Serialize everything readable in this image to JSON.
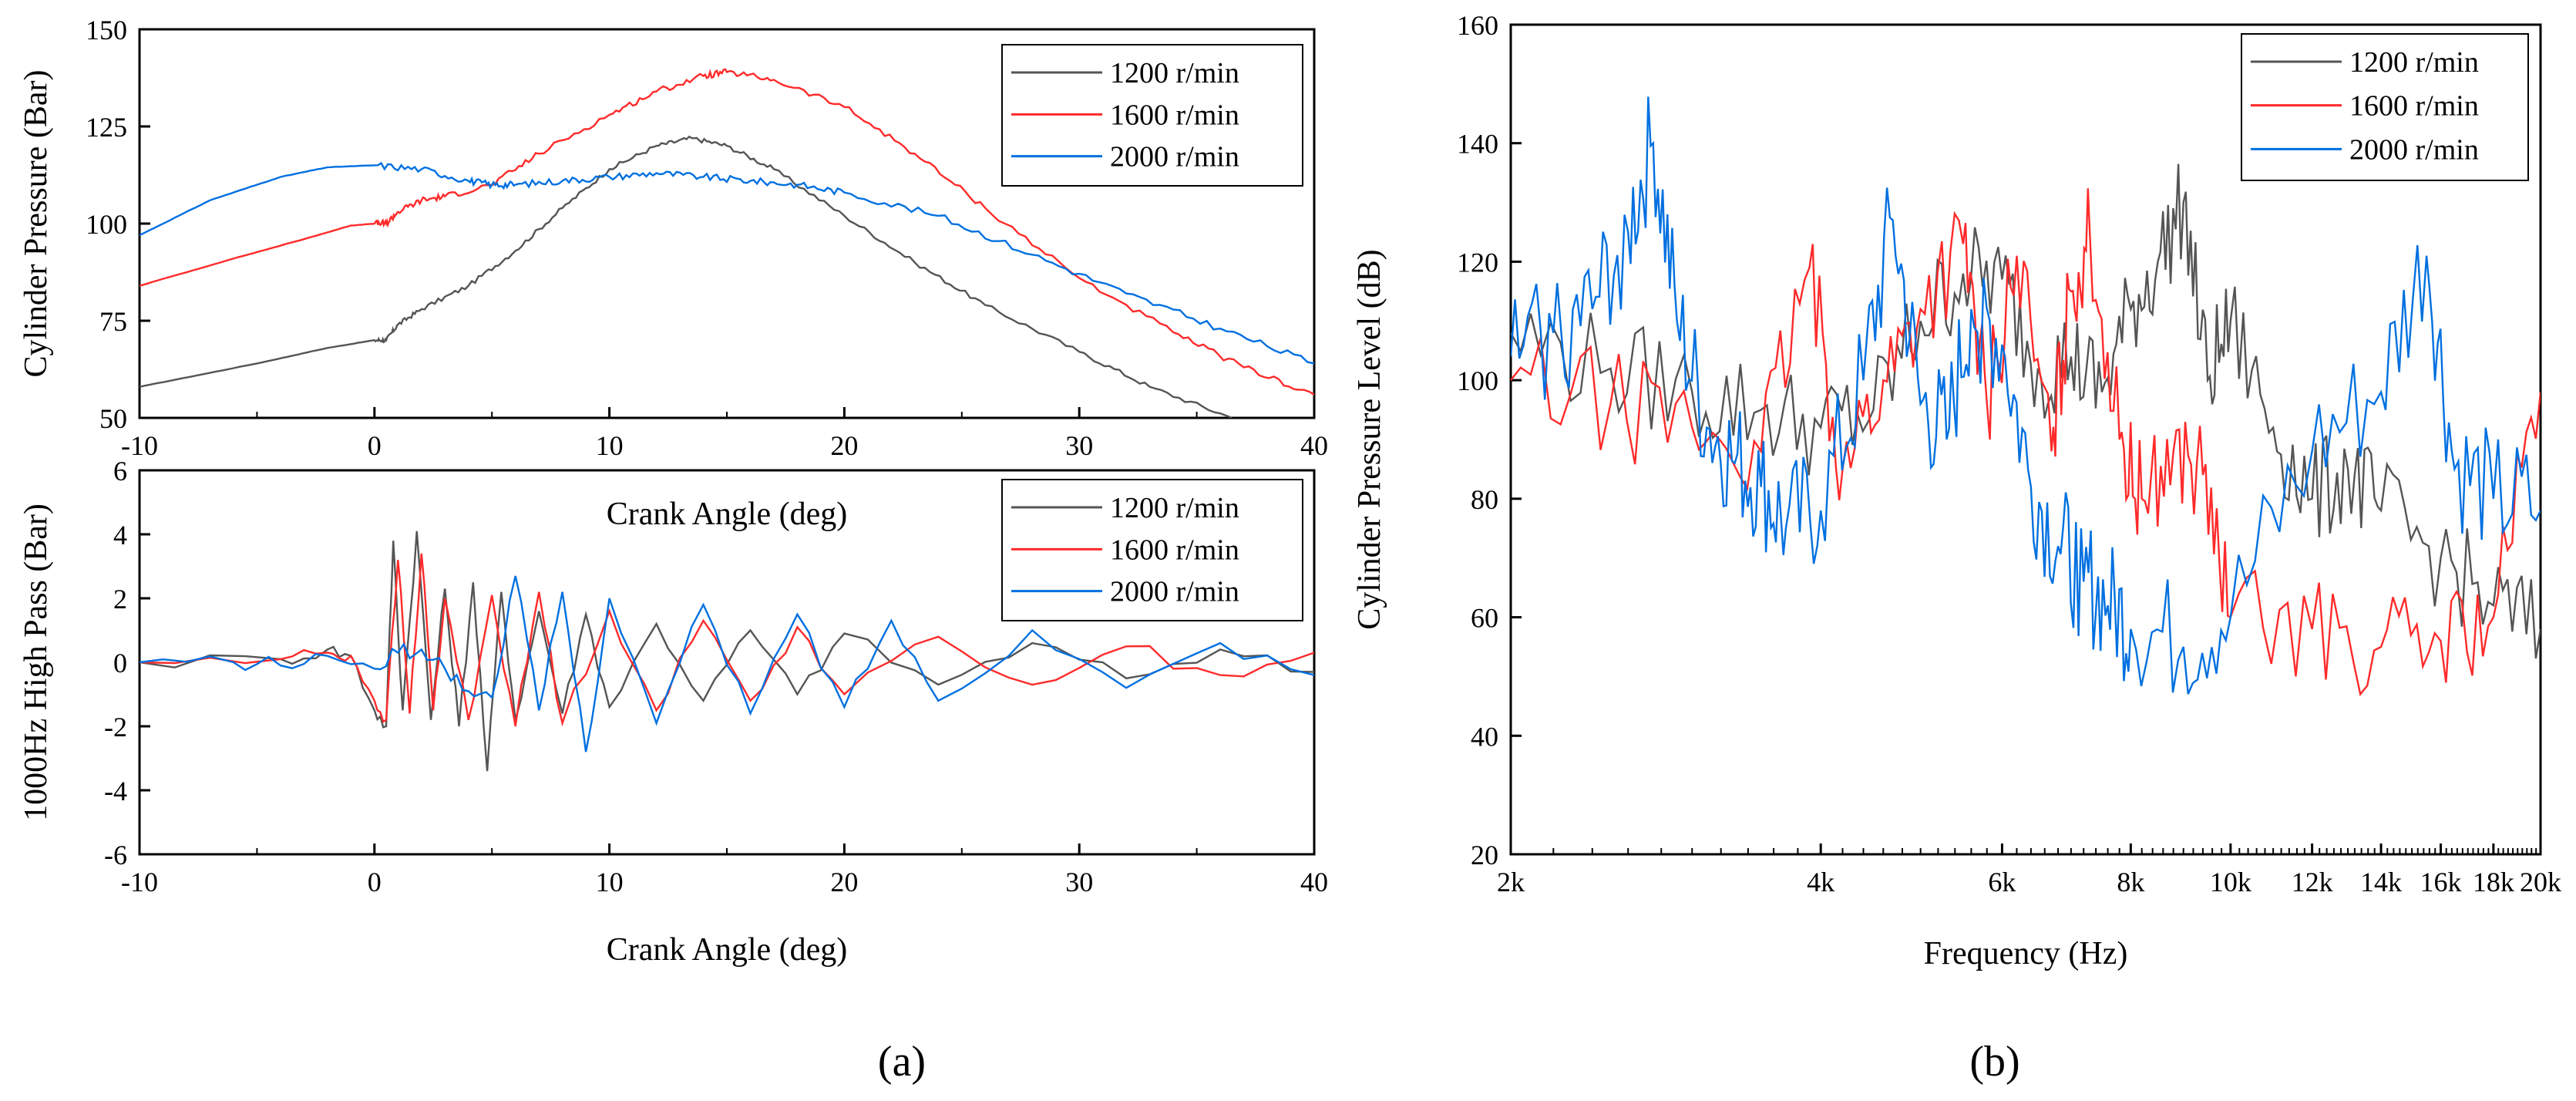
{
  "chart_data": [
    {
      "id": "a-top",
      "type": "line",
      "title": "",
      "xlabel": "Crank Angle (deg)",
      "ylabel": "Cylinder Pressure (Bar)",
      "xlim": [
        -10,
        40
      ],
      "ylim": [
        50,
        150
      ],
      "xticks": [
        "-10",
        "0",
        "10",
        "20",
        "30",
        "40"
      ],
      "yticks": [
        "50",
        "75",
        "100",
        "125",
        "150"
      ],
      "legend_position": "top-right",
      "series": [
        {
          "name": "1200 r/min",
          "color": "#555555",
          "x": [
            -10,
            -5,
            -2,
            0,
            0.5,
            1,
            2,
            4,
            6,
            8,
            10,
            12,
            13.5,
            15,
            17,
            20,
            23,
            26,
            30,
            33,
            36.5
          ],
          "y": [
            58,
            64,
            68,
            70,
            70,
            74,
            78,
            84,
            93,
            104,
            114,
            120,
            122,
            120,
            114,
            102,
            90,
            79,
            67,
            58,
            50
          ]
        },
        {
          "name": "1600 r/min",
          "color": "#ff2a2a",
          "x": [
            -10,
            -6,
            -3,
            -1,
            0,
            0.5,
            1,
            2,
            3,
            5,
            7,
            10,
            12,
            14,
            15,
            17,
            20,
            23,
            26,
            30,
            34,
            37,
            40
          ],
          "y": [
            84,
            91,
            96,
            99.5,
            100,
            100,
            103,
            106,
            107,
            110,
            118,
            128,
            134,
            138,
            139,
            137,
            130,
            118,
            104,
            86,
            72,
            63,
            56
          ]
        },
        {
          "name": "2000 r/min",
          "color": "#0070e0",
          "x": [
            -10,
            -7,
            -4,
            -2,
            0,
            2,
            4,
            5,
            6,
            8,
            10,
            12,
            14,
            16,
            18,
            20,
            24,
            28,
            32,
            36,
            40
          ],
          "y": [
            97,
            106,
            112,
            114.5,
            115,
            114,
            111,
            110,
            110,
            111,
            112,
            113,
            112,
            111,
            110,
            108,
            102,
            92,
            82,
            73,
            64
          ]
        }
      ]
    },
    {
      "id": "a-bottom",
      "type": "line",
      "title": "",
      "xlabel": "Crank Angle (deg)",
      "ylabel": "1000Hz High Pass (Bar)",
      "xlim": [
        -10,
        40
      ],
      "ylim": [
        -6,
        6
      ],
      "xticks": [
        "-10",
        "0",
        "10",
        "20",
        "30",
        "40"
      ],
      "yticks": [
        "-6",
        "-4",
        "-2",
        "0",
        "2",
        "4",
        "6"
      ],
      "legend_position": "top-right",
      "series": [
        {
          "name": "1200 r/min",
          "color": "#555555",
          "x": [
            -10,
            -4,
            -2,
            -1,
            0,
            0.5,
            0.8,
            1.2,
            1.8,
            2.4,
            3.0,
            3.6,
            4.2,
            4.8,
            5.4,
            6,
            7,
            8,
            9,
            10,
            12,
            14,
            16,
            18,
            20,
            24,
            28,
            32,
            36,
            40
          ],
          "y": [
            0,
            0.1,
            0.4,
            0.2,
            -1.5,
            -2.0,
            3.8,
            -1.5,
            4.1,
            -1.8,
            2.3,
            -2.0,
            2.5,
            -3.4,
            2.2,
            -1.8,
            1.6,
            -1.6,
            1.5,
            -1.4,
            1.2,
            -1.2,
            1.0,
            -1.0,
            0.9,
            -0.7,
            0.6,
            -0.5,
            0.4,
            -0.3
          ]
        },
        {
          "name": "1600 r/min",
          "color": "#ff2a2a",
          "x": [
            -10,
            -4,
            -2,
            -1,
            0,
            0.5,
            1.0,
            1.5,
            2.0,
            2.5,
            3,
            4,
            5,
            6,
            7,
            8,
            10,
            12,
            14,
            16,
            18,
            20,
            24,
            28,
            32,
            36,
            40
          ],
          "y": [
            0,
            0.1,
            0.3,
            0.2,
            -1.2,
            -1.8,
            3.2,
            -1.6,
            3.4,
            -1.5,
            2.0,
            -1.8,
            2.1,
            -2.0,
            2.2,
            -1.9,
            1.6,
            -1.5,
            1.3,
            -1.2,
            1.1,
            -1.0,
            0.8,
            -0.7,
            0.5,
            -0.4,
            0.3
          ]
        },
        {
          "name": "2000 r/min",
          "color": "#0070e0",
          "x": [
            -10,
            -6,
            -4,
            -2,
            0,
            1,
            2,
            3,
            4,
            5,
            6,
            7,
            8,
            9,
            10,
            12,
            14,
            16,
            18,
            20,
            22,
            24,
            28,
            32,
            36,
            40
          ],
          "y": [
            0,
            0,
            -0.1,
            0.2,
            -0.2,
            0.3,
            0.4,
            -0.2,
            -0.9,
            -1.1,
            2.7,
            -1.5,
            2.2,
            -2.8,
            2.0,
            -1.9,
            1.8,
            -1.6,
            1.5,
            -1.4,
            1.3,
            -1.2,
            1.0,
            -0.8,
            0.6,
            -0.4
          ]
        }
      ]
    },
    {
      "id": "b",
      "type": "line",
      "title": "",
      "xlabel": "Frequency (Hz)",
      "ylabel": "Cylinder Pressure Level (dB)",
      "xscale": "log",
      "xlim": [
        2000,
        20000
      ],
      "ylim": [
        20,
        160
      ],
      "xticks": [
        "2k",
        "4k",
        "6k",
        "8k",
        "10k",
        "12k",
        "14k",
        "16k",
        "18k",
        "20k"
      ],
      "yticks": [
        "20",
        "40",
        "60",
        "80",
        "100",
        "120",
        "140",
        "160"
      ],
      "legend_position": "top-right",
      "series": [
        {
          "name": "1200 r/min",
          "color": "#555555",
          "x": [
            2000,
            2500,
            3000,
            3500,
            4000,
            4500,
            5000,
            5500,
            6000,
            6500,
            7000,
            7500,
            8000,
            8500,
            9000,
            9500,
            10000,
            11000,
            12000,
            13000,
            14000,
            16000,
            18000,
            20000
          ],
          "y": [
            108,
            102,
            98,
            95,
            92,
            95,
            110,
            118,
            117,
            102,
            104,
            98,
            112,
            120,
            130,
            100,
            110,
            92,
            80,
            85,
            78,
            70,
            62,
            58
          ]
        },
        {
          "name": "1600 r/min",
          "color": "#ff2a2a",
          "x": [
            2000,
            2500,
            3000,
            3500,
            3900,
            4200,
            4600,
            5000,
            5500,
            5800,
            6200,
            6700,
            7000,
            7300,
            7800,
            8200,
            8800,
            9400,
            10000,
            12000,
            14000,
            16000,
            18000,
            20000
          ],
          "y": [
            100,
            96,
            92,
            88,
            119,
            85,
            100,
            112,
            123,
            96,
            121,
            88,
            115,
            125,
            90,
            80,
            88,
            84,
            60,
            58,
            55,
            56,
            60,
            98
          ]
        },
        {
          "name": "2000 r/min",
          "color": "#0070e0",
          "x": [
            2000,
            2200,
            2400,
            2600,
            2750,
            2900,
            3100,
            3300,
            3500,
            3700,
            4000,
            4400,
            4700,
            5000,
            5300,
            5600,
            6000,
            6400,
            6800,
            7200,
            7600,
            8000,
            9000,
            10000,
            12000,
            14000,
            15500,
            16500,
            18000,
            20000
          ],
          "y": [
            104,
            108,
            112,
            125,
            140,
            110,
            92,
            86,
            82,
            75,
            78,
            100,
            127,
            96,
            90,
            112,
            106,
            82,
            72,
            66,
            62,
            58,
            55,
            60,
            88,
            98,
            121,
            85,
            80,
            78
          ]
        }
      ]
    }
  ],
  "panel_labels": {
    "a": "(a)",
    "b": "(b)"
  }
}
